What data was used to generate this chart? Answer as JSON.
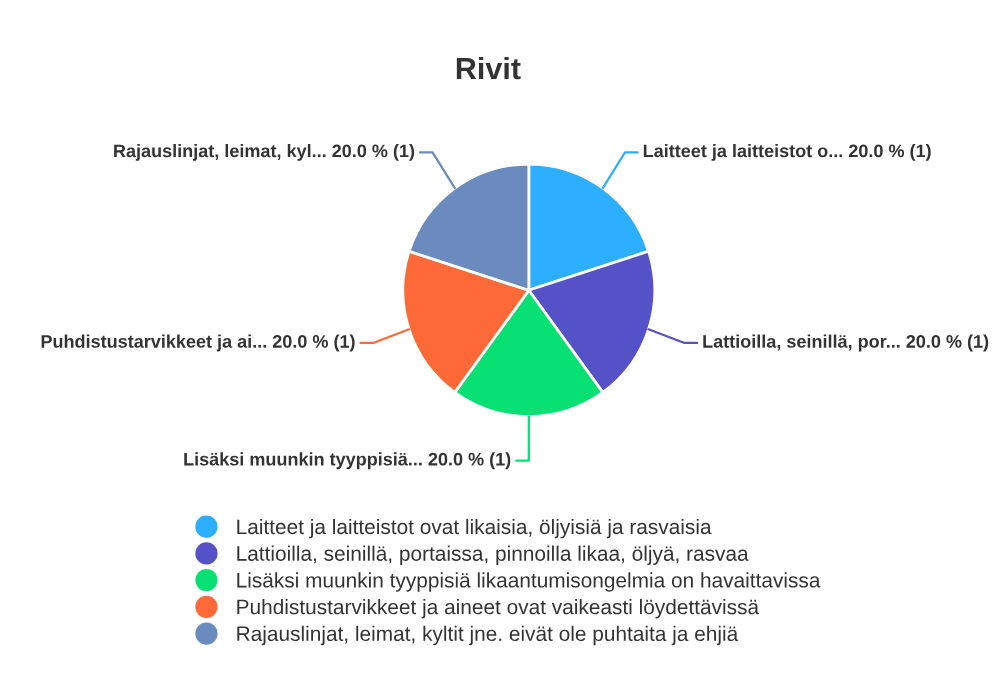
{
  "chart_data": {
    "type": "pie",
    "title": "Rivit",
    "categories": [
      "Laitteet ja laitteistot ovat likaisia, öljyisiä ja rasvaisia",
      "Lattioilla, seinillä, portaissa, pinnoilla likaa, öljyä, rasvaa",
      "Lisäksi muunkin tyyppisiä likaantumisongelmia on havaittavissa",
      "Puhdistustarvikkeet ja aineet ovat vaikeasti löydettävissä",
      "Rajauslinjat, leimat, kyltit jne. eivät ole puhtaita ja ehjiä"
    ],
    "values": [
      20,
      20,
      20,
      20,
      20
    ],
    "value_labels": [
      "Laitteet ja laitteistot o... 20.0 % (1)",
      "Lattioilla, seinillä, por... 20.0 % (1)",
      "Lisäksi muunkin tyyppisiä... 20.0 % (1)",
      "Puhdistustarvikkeet ja ai... 20.0 % (1)",
      "Rajauslinjat, leimat, kyl... 20.0 % (1)"
    ],
    "colors": [
      "#2eaefe",
      "#5452c6",
      "#08e074",
      "#fe6a37",
      "#6b8bbe"
    ],
    "legend": "bottom"
  }
}
